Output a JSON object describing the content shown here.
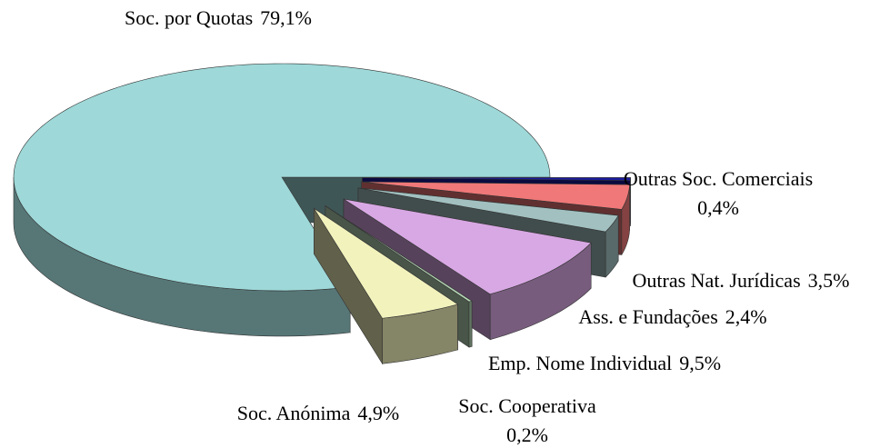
{
  "chart_data": {
    "type": "pie3d",
    "categories": [
      "Soc. por Quotas",
      "Outras Soc. Comerciais",
      "Outras Nat. Jurídicas",
      "Ass. e Fundações",
      "Emp. Nome Individual",
      "Soc. Cooperativa",
      "Soc. Anónima"
    ],
    "values": [
      79.1,
      0.4,
      3.5,
      2.4,
      9.5,
      0.2,
      4.9
    ],
    "value_labels": [
      "79,1%",
      "0,4%",
      "3,5%",
      "2,4%",
      "9,5%",
      "0,2%",
      "4,9%"
    ],
    "colors": [
      "#9ed8d8",
      "#1c1ca0",
      "#f07878",
      "#a2c0c0",
      "#d8a8e4",
      "#b4d4b4",
      "#f2f2bc"
    ]
  }
}
